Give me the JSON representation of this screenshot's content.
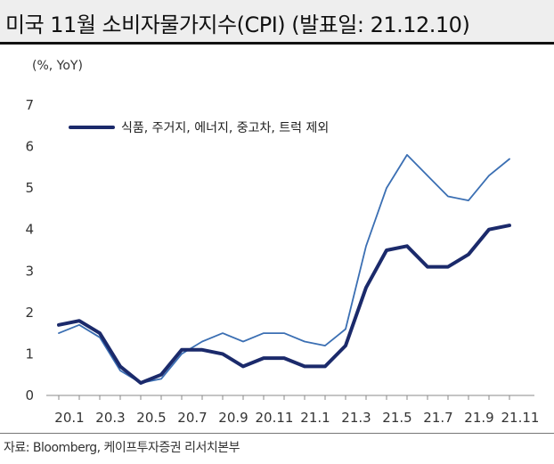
{
  "header": {
    "title": "미국 11월 소비자물가지수(CPI) (발표일: 21.12.10)"
  },
  "footer": {
    "source": "자료: Bloomberg, 케이프투자증권 리서치본부"
  },
  "chart_data": {
    "type": "line",
    "ylabel": "(%, YoY)",
    "ylim": [
      0,
      7
    ],
    "yticks": [
      "0",
      "1",
      "2",
      "3",
      "4",
      "5",
      "6",
      "7"
    ],
    "x": [
      "20.1",
      "20.2",
      "20.3",
      "20.4",
      "20.5",
      "20.6",
      "20.7",
      "20.8",
      "20.9",
      "20.10",
      "20.11",
      "20.12",
      "21.1",
      "21.2",
      "21.3",
      "21.4",
      "21.5",
      "21.6",
      "21.7",
      "21.8",
      "21.9",
      "21.10",
      "21.11"
    ],
    "xtick_labels": [
      "20.1",
      "20.3",
      "20.5",
      "20.7",
      "20.9",
      "20.11",
      "21.1",
      "21.3",
      "21.5",
      "21.7",
      "21.9",
      "21.11"
    ],
    "grid": false,
    "legend_position": "top-left",
    "series": [
      {
        "name": "식품, 주거지, 에너지, 중고차, 트럭 제외",
        "color": "#1b2a6b",
        "line_style": "thick",
        "in_legend": true,
        "values": [
          1.7,
          1.8,
          1.5,
          0.7,
          0.3,
          0.5,
          1.1,
          1.1,
          1.0,
          0.7,
          0.9,
          0.9,
          0.7,
          0.7,
          1.2,
          2.6,
          3.5,
          3.6,
          3.1,
          3.1,
          3.4,
          4.0,
          4.1
        ]
      },
      {
        "name": "",
        "color": "#3b6fb3",
        "line_style": "thin",
        "in_legend": false,
        "values": [
          1.5,
          1.7,
          1.4,
          0.6,
          0.3,
          0.4,
          1.0,
          1.3,
          1.5,
          1.3,
          1.5,
          1.5,
          1.3,
          1.2,
          1.6,
          3.6,
          5.0,
          5.8,
          5.3,
          4.8,
          4.7,
          5.3,
          5.7
        ]
      }
    ]
  }
}
